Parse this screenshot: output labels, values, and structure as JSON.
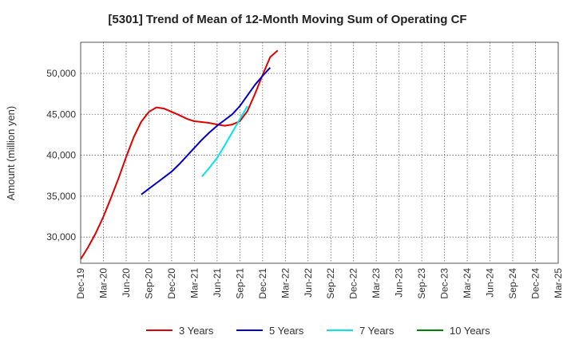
{
  "chart_data": {
    "type": "line",
    "title": "[5301]  Trend of Mean of 12-Month Moving Sum of Operating CF",
    "xlabel": "",
    "ylabel": "Amount (million yen)",
    "ylim": [
      26800,
      53800
    ],
    "y_ticks": [
      30000,
      35000,
      40000,
      45000,
      50000
    ],
    "y_tick_labels": [
      "30,000",
      "35,000",
      "40,000",
      "45,000",
      "50,000"
    ],
    "x_tick_labels": [
      "Dec-19",
      "Mar-20",
      "Jun-20",
      "Sep-20",
      "Dec-20",
      "Mar-21",
      "Jun-21",
      "Sep-21",
      "Dec-21",
      "Mar-22",
      "Jun-22",
      "Sep-22",
      "Dec-22",
      "Mar-23",
      "Jun-23",
      "Sep-23",
      "Dec-23",
      "Mar-24",
      "Jun-24",
      "Sep-24",
      "Dec-24",
      "Mar-25"
    ],
    "grid": true,
    "legend_position": "bottom",
    "series": [
      {
        "name": "3 Years",
        "color": "#e00000",
        "start_index": 0,
        "values": [
          27300,
          28800,
          30500,
          32500,
          34800,
          37200,
          39800,
          42200,
          44100,
          45300,
          45850,
          45700,
          45300,
          44900,
          44450,
          44150,
          44050,
          43950,
          43750,
          43600,
          43750,
          44150,
          45400,
          47500,
          49800,
          52000,
          52800
        ]
      },
      {
        "name": "5 Years",
        "color": "#0000cc",
        "start_index": 8,
        "values": [
          35200,
          35900,
          36600,
          37300,
          38000,
          38900,
          39900,
          40900,
          41900,
          42800,
          43600,
          44300,
          45000,
          46000,
          47300,
          48600,
          49700,
          50700
        ]
      },
      {
        "name": "7 Years",
        "color": "#00e5ee",
        "start_index": 16,
        "values": [
          37400,
          38500,
          39700,
          41200,
          42800,
          44400,
          46000
        ]
      },
      {
        "name": "10 Years",
        "color": "#008000",
        "start_index": 0,
        "values": []
      }
    ]
  }
}
